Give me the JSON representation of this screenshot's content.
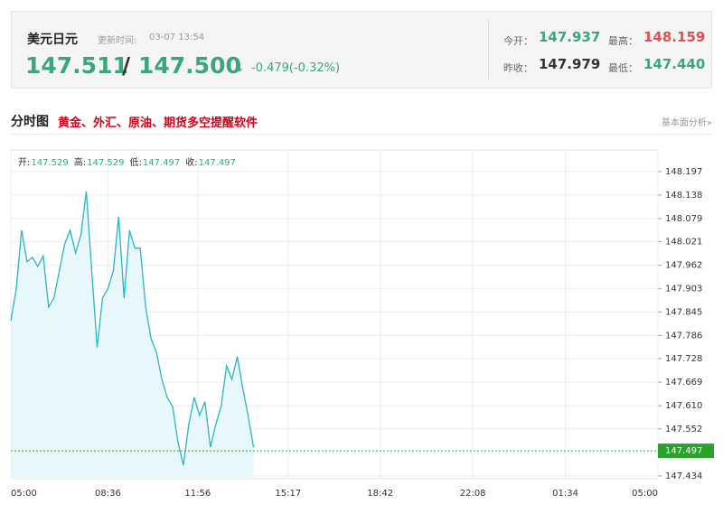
{
  "header": {
    "title": "美元日元",
    "update_label": "更新时间:",
    "update_time": "03-07 13:54",
    "price": "147.511",
    "separator": "/",
    "price2": "147.500",
    "arrow": "↓",
    "change": "-0.479(-0.32%)",
    "open_label": "今开：",
    "open": "147.937",
    "high_label": "最高：",
    "high": "148.159",
    "prev_label": "昨收：",
    "prev": "147.979",
    "low_label": "最低：",
    "low": "147.440"
  },
  "section": {
    "title": "分时图",
    "promo": "黄金、外汇、原油、期货多空提醒软件",
    "link": "基本面分析»"
  },
  "chart_data": {
    "type": "line",
    "ohlc_text": [
      {
        "label": "开:",
        "value": "147.529"
      },
      {
        "label": "高:",
        "value": "147.529"
      },
      {
        "label": "低:",
        "value": "147.497"
      },
      {
        "label": "收:",
        "value": "147.497"
      }
    ],
    "x": [
      0,
      12,
      24,
      36,
      48,
      60,
      72,
      84,
      96,
      108,
      120,
      132,
      144,
      156,
      168,
      180,
      192,
      204,
      216,
      228,
      240,
      252,
      264,
      276,
      288,
      300,
      312,
      324,
      336,
      348,
      360,
      372,
      384,
      396,
      408,
      420,
      432,
      444,
      456,
      468,
      480,
      492,
      504,
      516,
      528,
      540
    ],
    "values": [
      147.823,
      147.903,
      148.05,
      147.971,
      147.982,
      147.959,
      147.986,
      147.857,
      147.88,
      147.948,
      148.016,
      148.05,
      147.993,
      148.039,
      148.147,
      147.948,
      147.756,
      147.88,
      147.903,
      147.948,
      148.084,
      147.88,
      148.05,
      148.005,
      148.005,
      147.857,
      147.778,
      147.744,
      147.676,
      147.631,
      147.608,
      147.518,
      147.461,
      147.563,
      147.631,
      147.586,
      147.62,
      147.506,
      147.563,
      147.608,
      147.71,
      147.676,
      147.733,
      147.654,
      147.586,
      147.506
    ],
    "color": "#2bb3c6",
    "fill": "#e8f7fa",
    "xlim": [
      0,
      1440
    ],
    "xticks": [
      {
        "value": 0,
        "label": "05:00"
      },
      {
        "value": 216,
        "label": "08:36"
      },
      {
        "value": 416,
        "label": "11:56"
      },
      {
        "value": 617,
        "label": "15:17"
      },
      {
        "value": 822,
        "label": "18:42"
      },
      {
        "value": 1028,
        "label": "22:08"
      },
      {
        "value": 1234,
        "label": "01:34"
      },
      {
        "value": 1440,
        "label": "05:00"
      }
    ],
    "ylim": [
      147.427,
      148.251
    ],
    "yticks": [
      148.197,
      148.138,
      148.079,
      148.021,
      147.962,
      147.903,
      147.845,
      147.786,
      147.728,
      147.669,
      {
        "value": 147.61,
        "label": "147.610"
      },
      147.552,
      147.434
    ],
    "last_price": 147.497,
    "last_color": "#2ca02c",
    "grid": true
  }
}
